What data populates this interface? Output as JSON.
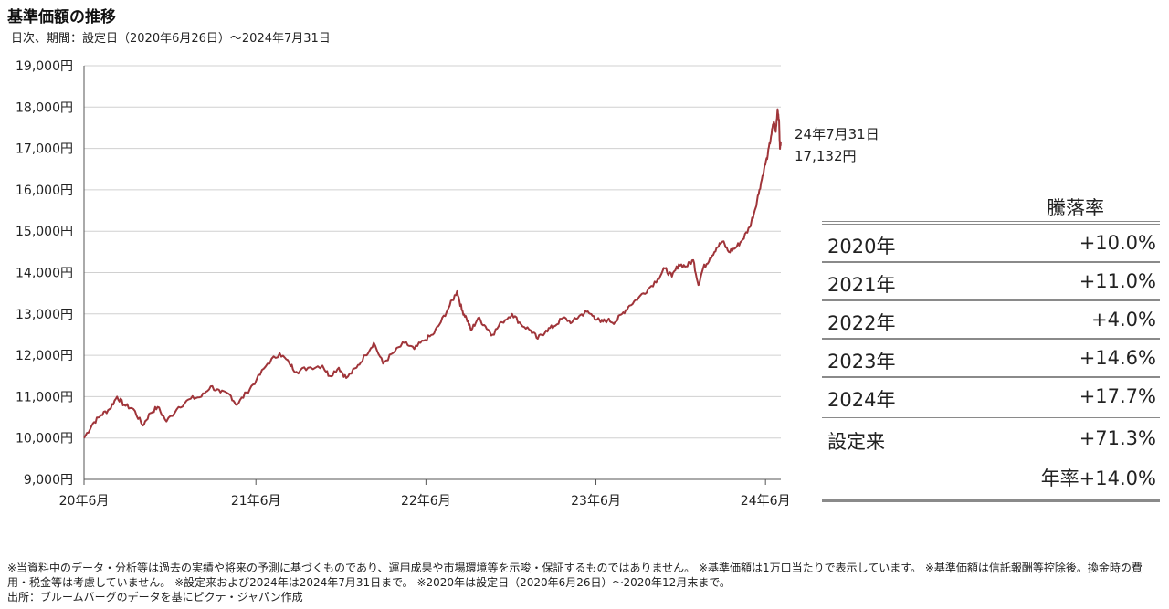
{
  "title": "基準価額の推移",
  "subtitle": "日次、期間：設定日（2020年6月26日）〜2024年7月31日",
  "chart_data": {
    "type": "line",
    "ylim": [
      9000,
      19000
    ],
    "yticks": [
      9000,
      10000,
      11000,
      12000,
      13000,
      14000,
      15000,
      16000,
      17000,
      18000,
      19000
    ],
    "ytick_labels": [
      "9,000円",
      "10,000円",
      "11,000円",
      "12,000円",
      "13,000円",
      "14,000円",
      "15,000円",
      "16,000円",
      "17,000円",
      "18,000円",
      "19,000円"
    ],
    "xlim": [
      "2020-06-26",
      "2024-07-31"
    ],
    "xtick_labels": [
      "20年6月",
      "21年6月",
      "22年6月",
      "23年6月",
      "24年6月"
    ],
    "xtick_dates": [
      "2020-06-26",
      "2021-06-30",
      "2022-06-30",
      "2023-06-30",
      "2024-06-28"
    ],
    "grid": true,
    "series": [
      {
        "color": "#a0353a",
        "points": [
          [
            "2020-06-26",
            10000
          ],
          [
            "2020-07-15",
            10350
          ],
          [
            "2020-08-01",
            10550
          ],
          [
            "2020-08-20",
            10700
          ],
          [
            "2020-09-05",
            11000
          ],
          [
            "2020-09-20",
            10800
          ],
          [
            "2020-10-10",
            10700
          ],
          [
            "2020-10-30",
            10300
          ],
          [
            "2020-11-15",
            10600
          ],
          [
            "2020-12-01",
            10750
          ],
          [
            "2020-12-20",
            10400
          ],
          [
            "2021-01-15",
            10750
          ],
          [
            "2021-02-10",
            10950
          ],
          [
            "2021-03-05",
            11000
          ],
          [
            "2021-03-25",
            11250
          ],
          [
            "2021-04-15",
            11100
          ],
          [
            "2021-05-05",
            11050
          ],
          [
            "2021-05-20",
            10800
          ],
          [
            "2021-06-10",
            11100
          ],
          [
            "2021-07-01",
            11400
          ],
          [
            "2021-07-25",
            11800
          ],
          [
            "2021-08-20",
            12050
          ],
          [
            "2021-09-10",
            11800
          ],
          [
            "2021-09-25",
            11600
          ],
          [
            "2021-10-20",
            11700
          ],
          [
            "2021-11-20",
            11750
          ],
          [
            "2021-12-05",
            11500
          ],
          [
            "2021-12-25",
            11700
          ],
          [
            "2022-01-10",
            11450
          ],
          [
            "2022-02-01",
            11700
          ],
          [
            "2022-02-20",
            12000
          ],
          [
            "2022-03-10",
            12300
          ],
          [
            "2022-03-30",
            11800
          ],
          [
            "2022-04-20",
            12050
          ],
          [
            "2022-05-15",
            12300
          ],
          [
            "2022-06-05",
            12150
          ],
          [
            "2022-06-25",
            12350
          ],
          [
            "2022-07-15",
            12500
          ],
          [
            "2022-08-01",
            12800
          ],
          [
            "2022-08-20",
            13200
          ],
          [
            "2022-09-05",
            13550
          ],
          [
            "2022-09-15",
            13100
          ],
          [
            "2022-09-25",
            12900
          ],
          [
            "2022-10-05",
            12600
          ],
          [
            "2022-10-20",
            12900
          ],
          [
            "2022-11-05",
            12700
          ],
          [
            "2022-11-20",
            12500
          ],
          [
            "2022-12-10",
            12800
          ],
          [
            "2023-01-01",
            13000
          ],
          [
            "2023-01-20",
            12750
          ],
          [
            "2023-02-10",
            12600
          ],
          [
            "2023-02-25",
            12400
          ],
          [
            "2023-03-15",
            12600
          ],
          [
            "2023-04-01",
            12700
          ],
          [
            "2023-04-20",
            12900
          ],
          [
            "2023-05-10",
            12800
          ],
          [
            "2023-05-25",
            12950
          ],
          [
            "2023-06-10",
            13050
          ],
          [
            "2023-06-25",
            12950
          ],
          [
            "2023-07-10",
            12800
          ],
          [
            "2023-07-25",
            12850
          ],
          [
            "2023-08-10",
            12800
          ],
          [
            "2023-08-25",
            13000
          ],
          [
            "2023-09-10",
            13200
          ],
          [
            "2023-09-30",
            13400
          ],
          [
            "2023-10-20",
            13600
          ],
          [
            "2023-11-10",
            13850
          ],
          [
            "2023-11-25",
            14100
          ],
          [
            "2023-12-10",
            13900
          ],
          [
            "2023-12-25",
            14200
          ],
          [
            "2024-01-10",
            14150
          ],
          [
            "2024-01-25",
            14300
          ],
          [
            "2024-02-05",
            13700
          ],
          [
            "2024-02-15",
            14100
          ],
          [
            "2024-03-01",
            14350
          ],
          [
            "2024-03-15",
            14600
          ],
          [
            "2024-03-28",
            14750
          ],
          [
            "2024-04-10",
            14500
          ],
          [
            "2024-04-25",
            14600
          ],
          [
            "2024-05-10",
            14800
          ],
          [
            "2024-05-25",
            15100
          ],
          [
            "2024-06-05",
            15500
          ],
          [
            "2024-06-15",
            16000
          ],
          [
            "2024-06-25",
            16500
          ],
          [
            "2024-07-03",
            16850
          ],
          [
            "2024-07-10",
            17300
          ],
          [
            "2024-07-16",
            17650
          ],
          [
            "2024-07-20",
            17400
          ],
          [
            "2024-07-24",
            17950
          ],
          [
            "2024-07-27",
            17700
          ],
          [
            "2024-07-29",
            17000
          ],
          [
            "2024-07-31",
            17132
          ]
        ]
      }
    ],
    "annotation": {
      "date": "2024年7月31日",
      "date_label": "24年7月31日",
      "value_label": "17,132円"
    }
  },
  "returns": {
    "header": "騰落率",
    "rows": [
      {
        "label": "2020年",
        "value": "+10.0%"
      },
      {
        "label": "2021年",
        "value": "+11.0%"
      },
      {
        "label": "2022年",
        "value": "+4.0%"
      },
      {
        "label": "2023年",
        "value": "+14.6%"
      },
      {
        "label": "2024年",
        "value": "+17.7%"
      }
    ],
    "since_inception": {
      "label": "設定来",
      "value": "+71.3%"
    },
    "annualized": "年率+14.0%"
  },
  "footnote": {
    "line1": "※当資料中のデータ・分析等は過去の実績や将来の予測に基づくものであり、運用成果や市場環境等を示唆・保証するものではありません。 ※基準価額は1万口当たりで表示しています。 ※基準価額は信託報酬等控除後。換金時の費用・税金等は考慮していません。 ※設定来および2024年は2024年7月31日まで。 ※2020年は設定日（2020年6月26日）〜2020年12月末まで。",
    "line2": "出所：ブルームバーグのデータを基にピクテ・ジャパン作成"
  }
}
